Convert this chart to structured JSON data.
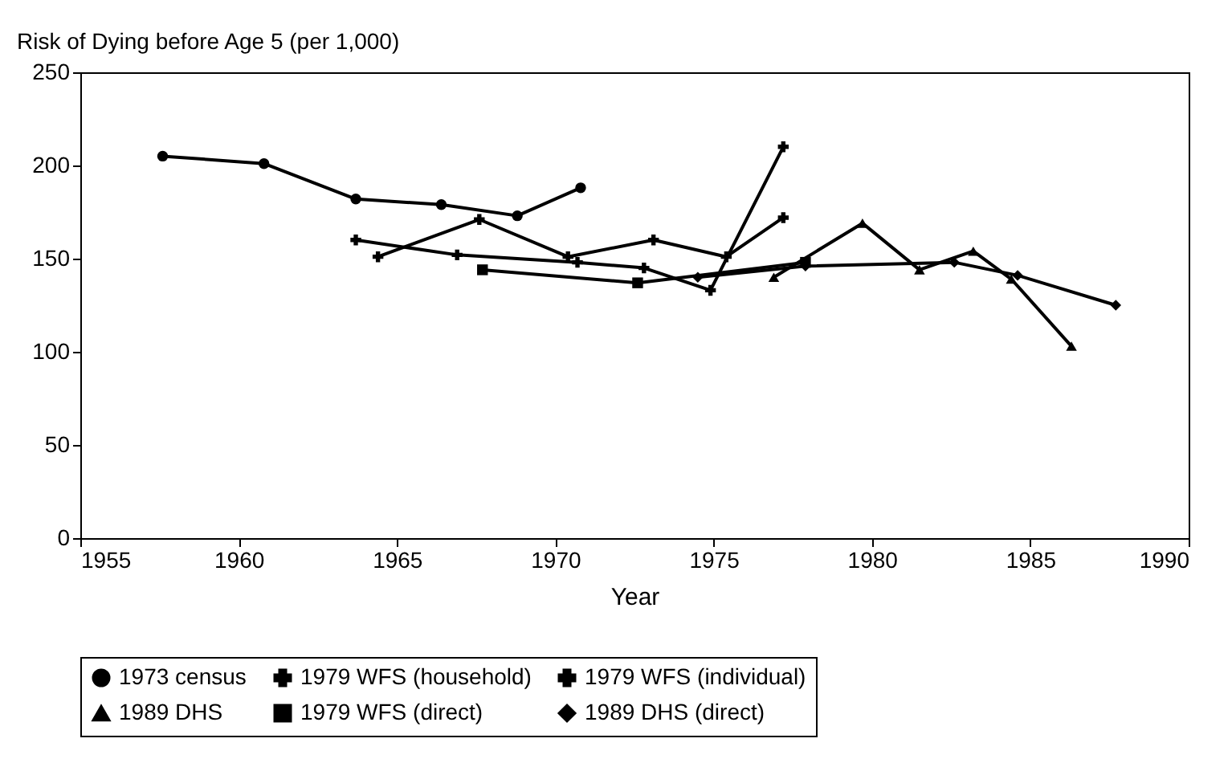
{
  "chart_data": {
    "type": "line",
    "ylabel": "Risk of Dying before Age 5 (per 1,000)",
    "xlabel": "Year",
    "xlim": [
      1955,
      1990
    ],
    "xticks": [
      1955,
      1960,
      1965,
      1970,
      1975,
      1980,
      1985,
      1990
    ],
    "ylim": [
      0,
      250
    ],
    "yticks": [
      0,
      50,
      100,
      150,
      200,
      250
    ],
    "grid": false,
    "legend": "bottom",
    "line_style": "solid",
    "series": [
      {
        "name": "1973 census",
        "color": "#000000",
        "marker": "circle",
        "x": [
          1957.6,
          1960.8,
          1963.7,
          1966.4,
          1968.8,
          1970.8
        ],
        "values": [
          205,
          201,
          182,
          179,
          173,
          188
        ]
      },
      {
        "name": "1979 WFS (household)",
        "color": "#000000",
        "marker": "cross",
        "x": [
          1964.4,
          1967.6,
          1970.4,
          1973.1,
          1975.4,
          1977.2
        ],
        "values": [
          151,
          171,
          151,
          160,
          151,
          172
        ]
      },
      {
        "name": "1979 WFS (individual)",
        "color": "#000000",
        "marker": "cross",
        "x": [
          1963.7,
          1966.9,
          1970.7,
          1972.8,
          1974.9,
          1977.2
        ],
        "values": [
          160,
          152,
          148,
          145,
          133,
          210
        ]
      },
      {
        "name": "1989 DHS",
        "color": "#000000",
        "marker": "triangle",
        "x": [
          1976.9,
          1979.7,
          1981.5,
          1983.2,
          1984.4,
          1986.3
        ],
        "values": [
          140,
          169,
          144,
          154,
          139,
          103
        ]
      },
      {
        "name": "1979 WFS (direct)",
        "color": "#000000",
        "marker": "square",
        "x": [
          1967.7,
          1972.6,
          1977.9
        ],
        "values": [
          144,
          137,
          148
        ]
      },
      {
        "name": "1989 DHS (direct)",
        "color": "#000000",
        "marker": "diamond",
        "x": [
          1974.5,
          1977.9,
          1982.6,
          1984.6,
          1987.7
        ],
        "values": [
          140,
          146,
          148,
          141,
          125
        ]
      }
    ]
  }
}
